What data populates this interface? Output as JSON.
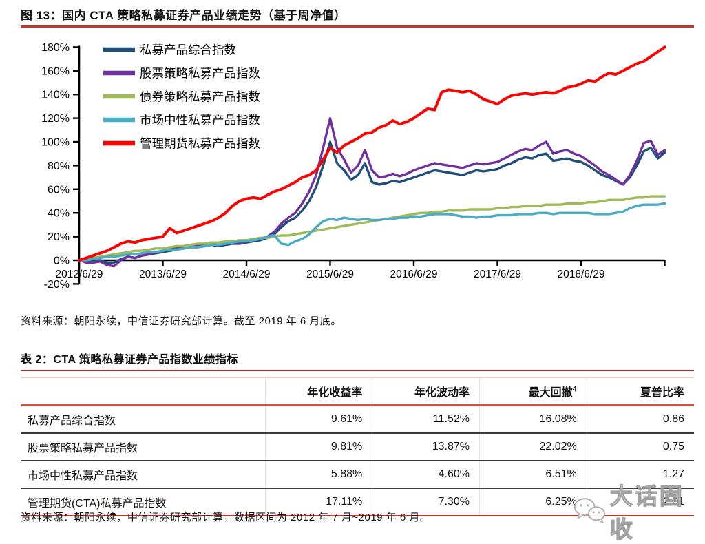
{
  "figure": {
    "title": "图 13：国内 CTA 策略私募证券产品业绩走势（基于周净值）",
    "source_note": "资料来源：朝阳永续，中信证券研究部计算。截至 2019 年 6 月底。"
  },
  "chart_data": {
    "type": "line",
    "title": "国内 CTA 策略私募证券产品业绩走势（基于周净值）",
    "ylim": [
      -20,
      180
    ],
    "grid": false,
    "legend_position": "top-left-inside",
    "y_tick_values": [
      180,
      160,
      140,
      120,
      100,
      80,
      60,
      40,
      20,
      0,
      -20
    ],
    "y_tick_labels": [
      "180%",
      "160%",
      "140%",
      "120%",
      "100%",
      "80%",
      "60%",
      "40%",
      "20%",
      "0%",
      "-20%"
    ],
    "x_tick_positions": [
      2012.5,
      2013.5,
      2014.5,
      2015.5,
      2016.5,
      2017.5,
      2018.5
    ],
    "x_tick_labels": [
      "2012/6/29",
      "2013/6/29",
      "2014/6/29",
      "2015/6/29",
      "2016/6/29",
      "2017/6/29",
      "2018/6/29"
    ],
    "x_range": [
      2012.5,
      2019.5
    ],
    "x_unit": "monthly samples from 2012/6 to 2019/6, values in percent cumulative return",
    "series": [
      {
        "name": "私募产品综合指数",
        "color": "#1F4E79",
        "values": [
          0,
          -1,
          -1,
          0,
          -2,
          -2,
          1,
          3,
          2,
          4,
          5,
          6,
          7,
          8,
          9,
          10,
          11,
          11,
          12,
          13,
          12,
          13,
          14,
          14,
          15,
          16,
          17,
          19,
          22,
          28,
          33,
          36,
          42,
          50,
          62,
          80,
          100,
          82,
          76,
          68,
          72,
          82,
          66,
          64,
          65,
          67,
          66,
          68,
          70,
          72,
          74,
          76,
          75,
          74,
          73,
          72,
          74,
          76,
          75,
          76,
          77,
          80,
          82,
          85,
          87,
          86,
          89,
          90,
          84,
          85,
          86,
          84,
          83,
          80,
          76,
          72,
          70,
          67,
          64,
          70,
          80,
          92,
          95,
          86,
          91
        ]
      },
      {
        "name": "股票策略私募产品指数",
        "color": "#7030A0",
        "values": [
          0,
          -2,
          -2,
          -1,
          -4,
          -5,
          0,
          3,
          2,
          4,
          5,
          7,
          8,
          10,
          11,
          12,
          13,
          13,
          14,
          15,
          13,
          14,
          15,
          15,
          16,
          17,
          18,
          20,
          24,
          31,
          36,
          40,
          48,
          58,
          72,
          95,
          120,
          95,
          85,
          74,
          80,
          93,
          76,
          70,
          71,
          73,
          71,
          73,
          76,
          78,
          80,
          82,
          81,
          80,
          79,
          78,
          80,
          82,
          81,
          82,
          83,
          86,
          89,
          92,
          94,
          93,
          97,
          100,
          90,
          92,
          93,
          90,
          88,
          84,
          80,
          75,
          72,
          68,
          64,
          72,
          84,
          99,
          101,
          89,
          93
        ]
      },
      {
        "name": "债券策略私募产品指数",
        "color": "#9FBB58",
        "values": [
          0,
          1,
          2,
          3,
          4,
          5,
          6,
          7,
          8,
          8,
          9,
          10,
          10,
          11,
          12,
          12,
          13,
          14,
          14,
          15,
          15,
          16,
          16,
          17,
          17,
          18,
          19,
          19,
          20,
          21,
          21,
          22,
          23,
          24,
          25,
          26,
          27,
          28,
          29,
          30,
          31,
          32,
          33,
          34,
          35,
          36,
          37,
          38,
          39,
          40,
          40,
          41,
          41,
          42,
          42,
          42,
          43,
          43,
          43,
          43,
          44,
          44,
          45,
          45,
          46,
          46,
          46,
          47,
          47,
          47,
          48,
          48,
          48,
          49,
          49,
          50,
          51,
          51,
          51,
          52,
          53,
          53,
          54,
          54,
          54
        ]
      },
      {
        "name": "市场中性私募产品指数",
        "color": "#4BACC6",
        "values": [
          0,
          0,
          1,
          2,
          3,
          3,
          4,
          5,
          5,
          6,
          7,
          7,
          8,
          9,
          9,
          10,
          11,
          11,
          12,
          13,
          13,
          14,
          15,
          16,
          16,
          17,
          18,
          20,
          21,
          14,
          13,
          16,
          18,
          22,
          28,
          33,
          35,
          34,
          36,
          35,
          34,
          35,
          34,
          34,
          35,
          35,
          36,
          36,
          37,
          37,
          38,
          39,
          39,
          39,
          38,
          37,
          37,
          36,
          37,
          37,
          38,
          38,
          38,
          39,
          39,
          39,
          40,
          40,
          39,
          40,
          40,
          40,
          40,
          40,
          39,
          39,
          39,
          40,
          41,
          44,
          46,
          47,
          47,
          47,
          48
        ]
      },
      {
        "name": "管理期货私募产品指数",
        "color": "#FF0000",
        "values": [
          0,
          2,
          4,
          6,
          8,
          11,
          14,
          16,
          15,
          17,
          18,
          19,
          20,
          27,
          23,
          25,
          27,
          29,
          31,
          33,
          36,
          40,
          46,
          50,
          52,
          53,
          52,
          55,
          58,
          60,
          63,
          66,
          70,
          72,
          76,
          85,
          95,
          91,
          97,
          100,
          103,
          107,
          108,
          112,
          114,
          118,
          115,
          117,
          120,
          124,
          128,
          127,
          142,
          144,
          143,
          142,
          143,
          140,
          136,
          134,
          132,
          136,
          139,
          140,
          141,
          140,
          141,
          142,
          141,
          143,
          146,
          147,
          149,
          152,
          151,
          155,
          158,
          157,
          160,
          163,
          166,
          168,
          172,
          176,
          180
        ]
      }
    ]
  },
  "table": {
    "title": "表 2：CTA 策略私募证券产品指数业绩指标",
    "headers": [
      {
        "label": ""
      },
      {
        "label": "年化收益率"
      },
      {
        "label": "年化波动率"
      },
      {
        "label": "最大回撤",
        "sup": "4"
      },
      {
        "label": "夏普比率"
      }
    ],
    "rows": [
      [
        "私募产品综合指数",
        "9.61%",
        "11.52%",
        "16.08%",
        "0.86"
      ],
      [
        "股票策略私募产品指数",
        "9.81%",
        "13.87%",
        "22.02%",
        "0.75"
      ],
      [
        "市场中性私募产品指数",
        "5.88%",
        "4.60%",
        "6.51%",
        "1.27"
      ],
      [
        "管理期货(CTA)私募产品指数",
        "17.11%",
        "7.30%",
        "6.25%",
        "2.01"
      ]
    ],
    "source_note": "资料来源：朝阳永续，中信证券研究部计算。数据区间为 2012 年 7 月~2019 年 6 月。"
  },
  "watermark": {
    "icon": "wechat-icon",
    "text": "大话固收"
  },
  "colors": {
    "title_rule_red": "#C3362B",
    "table_title_rule": "#9E352C",
    "table_header_rule": "#E04B3A",
    "table_top_rule": "#F5CDC6",
    "row_divider": "#3c3c3c",
    "axis_black": "#000000"
  }
}
